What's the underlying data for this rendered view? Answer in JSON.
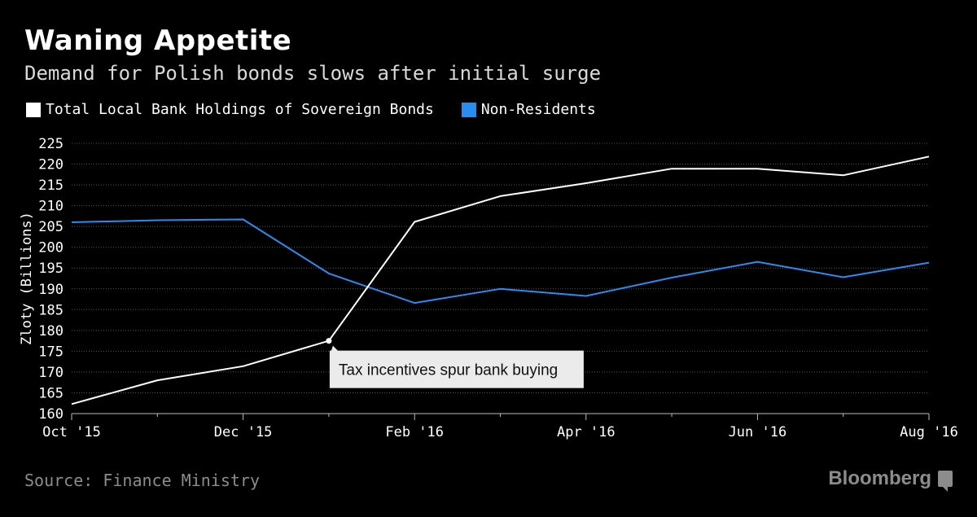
{
  "header": {
    "title": "Waning Appetite",
    "subtitle": "Demand for Polish bonds slows after initial surge"
  },
  "legend": {
    "items": [
      {
        "label": "Total Local Bank Holdings of Sovereign Bonds",
        "color": "#ffffff"
      },
      {
        "label": "Non-Residents",
        "color": "#2b8cf0"
      }
    ]
  },
  "footer": {
    "source": "Source: Finance Ministry",
    "brand": "Bloomberg"
  },
  "chart_data": {
    "type": "line",
    "ylabel": "Zloty (Billions)",
    "ylim": [
      160,
      225
    ],
    "yticks": [
      160,
      165,
      170,
      175,
      180,
      185,
      190,
      195,
      200,
      205,
      210,
      215,
      220,
      225
    ],
    "x": [
      "Oct '15",
      "Nov '15",
      "Dec '15",
      "Jan '16",
      "Feb '16",
      "Mar '16",
      "Apr '16",
      "May '16",
      "Jun '16",
      "Jul '16",
      "Aug '16"
    ],
    "xtick_labels": [
      "Oct '15",
      "Dec '15",
      "Feb '16",
      "Apr '16",
      "Jun '16",
      "Aug '16"
    ],
    "grid": true,
    "legend_position": "top-left",
    "series": [
      {
        "name": "Total Local Bank Holdings of Sovereign Bonds",
        "color": "#ffffff",
        "values": [
          162.3,
          168.0,
          171.4,
          177.5,
          206.1,
          212.3,
          215.4,
          218.9,
          218.9,
          217.3,
          221.8
        ]
      },
      {
        "name": "Non-Residents",
        "color": "#2b8cf0",
        "values": [
          206.0,
          206.5,
          206.7,
          193.7,
          186.6,
          190.0,
          188.3,
          192.7,
          196.5,
          192.8,
          196.3
        ]
      }
    ],
    "annotations": [
      {
        "text": "Tax incentives spur bank buying",
        "series": 0,
        "index": 3
      }
    ]
  }
}
